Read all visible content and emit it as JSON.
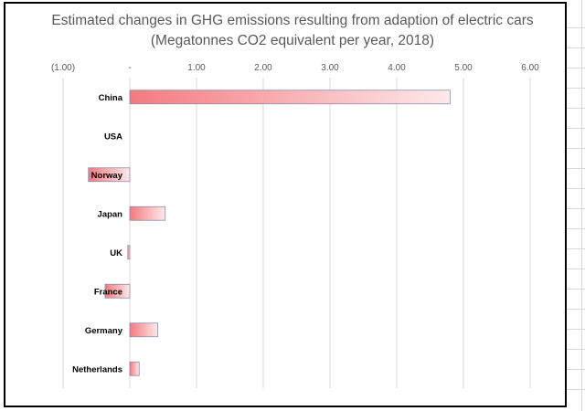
{
  "chart_data": {
    "type": "bar",
    "orientation": "horizontal",
    "title": "Estimated changes in GHG emissions resulting from adaption of electric cars",
    "subtitle": "(Megatonnes CO2 equivalent per year, 2018)",
    "categories": [
      "China",
      "USA",
      "Norway",
      "Japan",
      "UK",
      "France",
      "Germany",
      "Netherlands"
    ],
    "values": [
      4.8,
      0.0,
      -0.62,
      0.53,
      -0.03,
      -0.37,
      0.42,
      0.14
    ],
    "xlim": [
      -1,
      6
    ],
    "x_ticks": [
      -1,
      0,
      1,
      2,
      3,
      4,
      5,
      6
    ],
    "x_tick_labels": [
      "(1.00)",
      "-",
      "1.00",
      "2.00",
      "3.00",
      "4.00",
      "5.00",
      "6.00"
    ],
    "axis_position": "top",
    "grid": true,
    "bar_gradient": [
      "#f47a7e",
      "#fde9ea"
    ],
    "bar_border": "#8a8bb3",
    "grid_color": "#d9d9d9"
  }
}
